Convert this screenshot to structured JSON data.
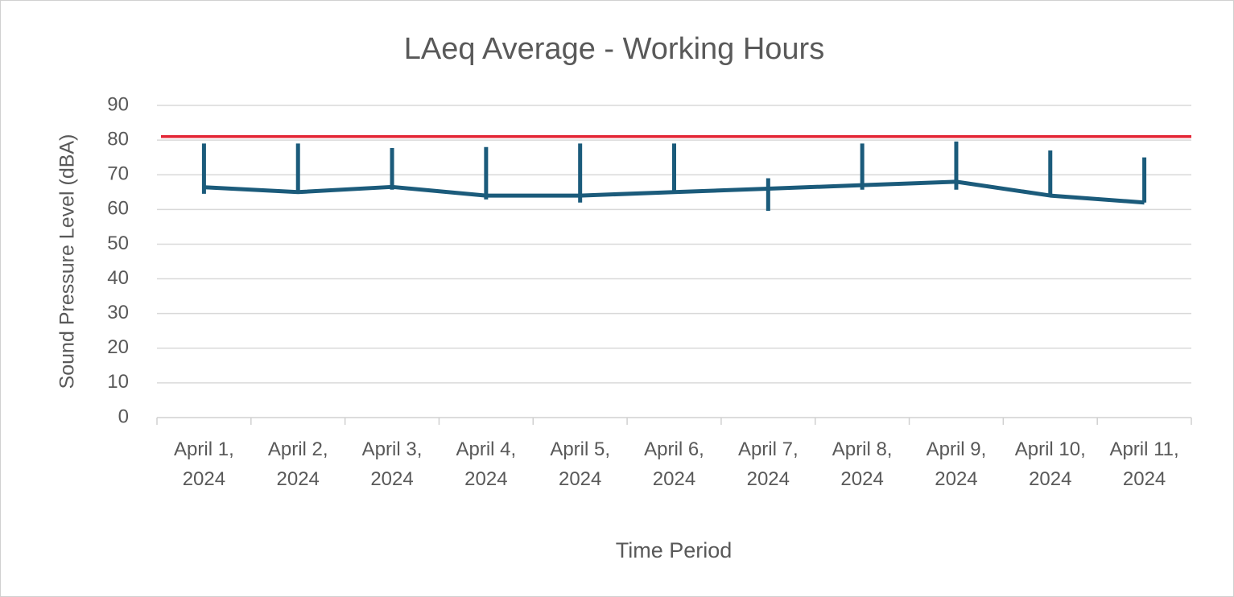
{
  "chart_data": {
    "type": "line",
    "title": "LAeq Average - Working Hours",
    "x_label": "Time Period",
    "y_label": "Sound Pressure Level (dBA)",
    "categories": [
      "April 1, 2024",
      "April 2, 2024",
      "April 3, 2024",
      "April 4, 2024",
      "April 5, 2024",
      "April 6, 2024",
      "April 7, 2024",
      "April 8, 2024",
      "April 9, 2024",
      "April 10, 2024",
      "April 11, 2024"
    ],
    "high": [
      79,
      79,
      77.7,
      78,
      79,
      79,
      69,
      79,
      79.6,
      77,
      75
    ],
    "low": [
      64.5,
      64.5,
      65.7,
      62.9,
      62,
      64.5,
      59.6,
      65.7,
      65.7,
      64,
      62
    ],
    "series": [
      {
        "color": "#1b5b7b",
        "values": [
          66.4,
          65,
          66.5,
          64,
          64,
          65,
          66,
          67,
          68,
          64,
          62
        ]
      }
    ],
    "threshold": {
      "value": 81,
      "color": "#e32636"
    },
    "ylim": [
      0,
      90
    ],
    "yticks": [
      0,
      10,
      20,
      30,
      40,
      50,
      60,
      70,
      80,
      90
    ],
    "grid": true
  }
}
